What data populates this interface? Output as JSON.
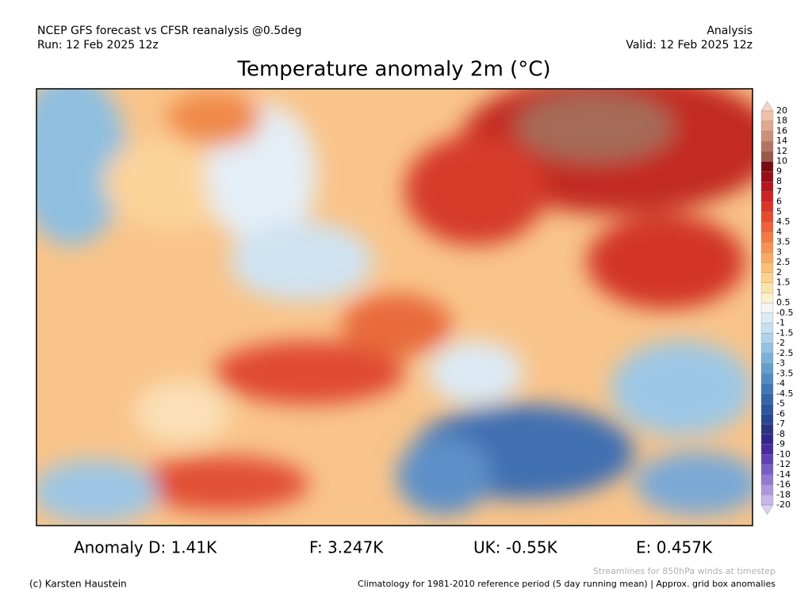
{
  "header": {
    "left_line1": "NCEP GFS forecast vs CFSR reanalysis @0.5deg",
    "left_line2": "Run: 12 Feb 2025 12z",
    "right_line1": "Analysis",
    "right_line2": "Valid: 12 Feb 2025 12z"
  },
  "title": "Temperature anomaly 2m (°C)",
  "colorbar": {
    "labels": [
      "20",
      "18",
      "16",
      "14",
      "12",
      "10",
      "9",
      "8",
      "7",
      "6",
      "5",
      "4.5",
      "4",
      "3.5",
      "3",
      "2.5",
      "2",
      "1.5",
      "1",
      "0.5",
      "-0.5",
      "-1",
      "-1.5",
      "-2",
      "-2.5",
      "-3",
      "-3.5",
      "-4",
      "-4.5",
      "-5",
      "-6",
      "-7",
      "-8",
      "-9",
      "-10",
      "-12",
      "-14",
      "-16",
      "-18",
      "-20"
    ],
    "colors": [
      "#f7d6c8",
      "#efc0a8",
      "#e0a88f",
      "#cc8f78",
      "#b57462",
      "#99594b",
      "#7a0a12",
      "#990d16",
      "#b5161d",
      "#cc2226",
      "#dd3428",
      "#e84a2e",
      "#ef6036",
      "#f47a42",
      "#f79352",
      "#f9aa62",
      "#fbbf76",
      "#fcd28c",
      "#fde3a8",
      "#fef1cc",
      "#f5f5f5",
      "#dcecf6",
      "#c6e0f0",
      "#aed2ea",
      "#94c2e2",
      "#7bb0d8",
      "#649ecd",
      "#508bc2",
      "#3f77b6",
      "#3465aa",
      "#2c559e",
      "#264690",
      "#2a3580",
      "#33288a",
      "#4a2a9e",
      "#6040b4",
      "#7a5cc4",
      "#9478d2",
      "#ae96de",
      "#c8b6ea",
      "#ddd0f2"
    ]
  },
  "anomalies": [
    "Anomaly D: 1.41K",
    "F: 3.247K",
    "UK: -0.55K",
    "E: 0.457K"
  ],
  "footer": {
    "streamlines_note": "Streamlines for 850hPa winds at timestep",
    "credit": "(c) Karsten Haustein",
    "climatology_note": "Climatology for 1981-2010 reference period (5 day running mean) | Approx. grid box anomalies"
  }
}
